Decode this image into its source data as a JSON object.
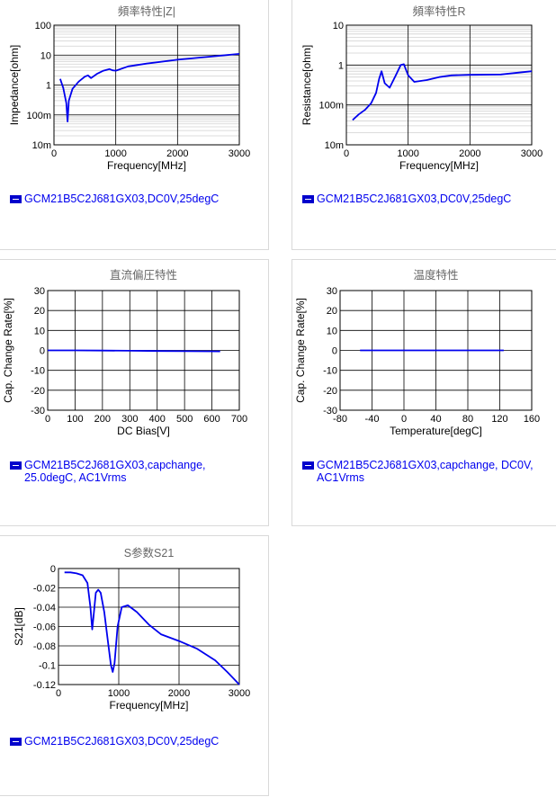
{
  "chart_data": [
    {
      "type": "line",
      "title": "頻率特性|Z|",
      "xlabel": "Frequency[MHz]",
      "ylabel": "Impedance[ohm]",
      "xlim": [
        0,
        3000
      ],
      "ylim": [
        0.01,
        100
      ],
      "yscale": "log",
      "x_ticks": [
        0,
        1000,
        2000,
        3000
      ],
      "x_tick_labels": [
        "0",
        "1000",
        "2000",
        "3000"
      ],
      "y_ticks": [
        0.01,
        0.1,
        1,
        10,
        100
      ],
      "y_tick_labels": [
        "10m",
        "100m",
        "1",
        "10",
        "100"
      ],
      "grid": true,
      "series": [
        {
          "name": "GCM21B5C2J681GX03,DC0V,25degC",
          "color": "#0000ee",
          "x": [
            100,
            150,
            200,
            220,
            240,
            300,
            400,
            500,
            550,
            600,
            700,
            800,
            900,
            950,
            1000,
            1200,
            1500,
            2000,
            2500,
            3000
          ],
          "y": [
            1.6,
            0.8,
            0.25,
            0.06,
            0.3,
            0.75,
            1.3,
            1.9,
            2.1,
            1.7,
            2.4,
            3.0,
            3.4,
            3.1,
            3.0,
            4.2,
            5.2,
            7.0,
            8.8,
            11.0
          ]
        }
      ],
      "legend": "GCM21B5C2J681GX03,DC0V,25degC"
    },
    {
      "type": "line",
      "title": "頻率特性R",
      "xlabel": "Frequency[MHz]",
      "ylabel": "Resistance[ohm]",
      "xlim": [
        0,
        3000
      ],
      "ylim": [
        0.01,
        10
      ],
      "yscale": "log",
      "x_ticks": [
        0,
        1000,
        2000,
        3000
      ],
      "x_tick_labels": [
        "0",
        "1000",
        "2000",
        "3000"
      ],
      "y_ticks": [
        0.01,
        0.1,
        1,
        10
      ],
      "y_tick_labels": [
        "10m",
        "100m",
        "1",
        "10"
      ],
      "grid": true,
      "series": [
        {
          "name": "GCM21B5C2J681GX03,DC0V,25degC",
          "color": "#0000ee",
          "x": [
            100,
            200,
            300,
            400,
            480,
            530,
            570,
            620,
            700,
            800,
            880,
            930,
            1000,
            1100,
            1300,
            1500,
            1700,
            2000,
            2500,
            3000
          ],
          "y": [
            0.042,
            0.058,
            0.075,
            0.11,
            0.2,
            0.45,
            0.7,
            0.35,
            0.27,
            0.55,
            1.0,
            1.05,
            0.55,
            0.38,
            0.42,
            0.5,
            0.55,
            0.57,
            0.58,
            0.7
          ]
        }
      ],
      "legend": "GCM21B5C2J681GX03,DC0V,25degC"
    },
    {
      "type": "line",
      "title": "直流偏圧特性",
      "xlabel": "DC Bias[V]",
      "ylabel": "Cap. Change Rate[%]",
      "xlim": [
        0,
        700
      ],
      "ylim": [
        -30,
        30
      ],
      "x_ticks": [
        0,
        100,
        200,
        300,
        400,
        500,
        600,
        700
      ],
      "x_tick_labels": [
        "0",
        "100",
        "200",
        "300",
        "400",
        "500",
        "600",
        "700"
      ],
      "y_ticks": [
        -30,
        -20,
        -10,
        0,
        10,
        20,
        30
      ],
      "y_tick_labels": [
        "-30",
        "-20",
        "-10",
        "0",
        "10",
        "20",
        "30"
      ],
      "grid": true,
      "series": [
        {
          "name": "GCM21B5C2J681GX03,capchange, 25.0degC, AC1Vrms",
          "color": "#0000ee",
          "x": [
            0,
            100,
            200,
            300,
            400,
            500,
            630
          ],
          "y": [
            0,
            0,
            -0.1,
            -0.2,
            -0.3,
            -0.4,
            -0.5
          ]
        }
      ],
      "legend": "GCM21B5C2J681GX03,capchange, 25.0degC, AC1Vrms"
    },
    {
      "type": "line",
      "title": "温度特性",
      "xlabel": "Temperature[degC]",
      "ylabel": "Cap. Change Rate[%]",
      "xlim": [
        -80,
        160
      ],
      "ylim": [
        -30,
        30
      ],
      "x_ticks": [
        -80,
        -40,
        0,
        40,
        80,
        120,
        160
      ],
      "x_tick_labels": [
        "-80",
        "-40",
        "0",
        "40",
        "80",
        "120",
        "160"
      ],
      "y_ticks": [
        -30,
        -20,
        -10,
        0,
        10,
        20,
        30
      ],
      "y_tick_labels": [
        "-30",
        "-20",
        "-10",
        "0",
        "10",
        "20",
        "30"
      ],
      "grid": true,
      "series": [
        {
          "name": "GCM21B5C2J681GX03,capchange, DC0V, AC1Vrms",
          "color": "#0000ee",
          "x": [
            -55,
            -25,
            0,
            25,
            50,
            85,
            125
          ],
          "y": [
            0,
            0,
            0,
            0,
            0,
            0,
            0
          ]
        }
      ],
      "legend": "GCM21B5C2J681GX03,capchange, DC0V, AC1Vrms"
    },
    {
      "type": "line",
      "title": "S参数S21",
      "xlabel": "Frequency[MHz]",
      "ylabel": "S21[dB]",
      "xlim": [
        0,
        3000
      ],
      "ylim": [
        -0.12,
        0
      ],
      "x_ticks": [
        0,
        1000,
        2000,
        3000
      ],
      "x_tick_labels": [
        "0",
        "1000",
        "2000",
        "3000"
      ],
      "y_ticks": [
        -0.12,
        -0.1,
        -0.08,
        -0.06,
        -0.04,
        -0.02,
        0
      ],
      "y_tick_labels": [
        "-0.12",
        "-0.1",
        "-0.08",
        "-0.06",
        "-0.04",
        "-0.02",
        "0"
      ],
      "grid": true,
      "series": [
        {
          "name": "GCM21B5C2J681GX03,DC0V,25degC",
          "color": "#0000ee",
          "x": [
            100,
            200,
            300,
            400,
            480,
            530,
            560,
            580,
            620,
            660,
            700,
            760,
            820,
            870,
            900,
            930,
            980,
            1050,
            1150,
            1300,
            1500,
            1700,
            2000,
            2300,
            2600,
            2800,
            3000
          ],
          "y": [
            -0.004,
            -0.004,
            -0.005,
            -0.007,
            -0.015,
            -0.04,
            -0.063,
            -0.05,
            -0.025,
            -0.022,
            -0.025,
            -0.045,
            -0.075,
            -0.1,
            -0.107,
            -0.098,
            -0.06,
            -0.04,
            -0.038,
            -0.045,
            -0.058,
            -0.068,
            -0.075,
            -0.083,
            -0.095,
            -0.107,
            -0.12
          ]
        }
      ],
      "legend": "GCM21B5C2J681GX03,DC0V,25degC"
    }
  ]
}
